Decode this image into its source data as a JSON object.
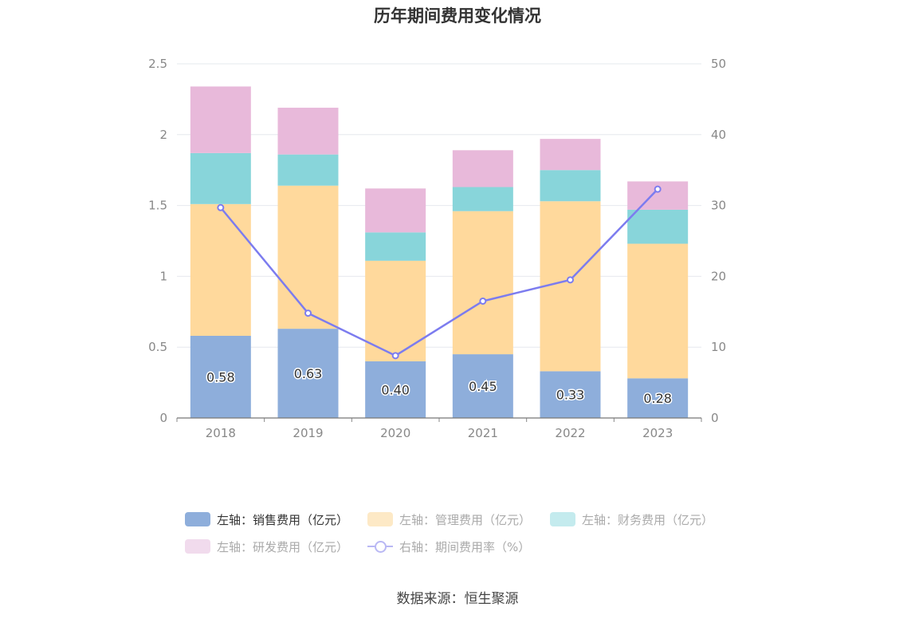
{
  "title": "历年期间费用变化情况",
  "source": "数据来源：恒生聚源",
  "legend": [
    {
      "label": "左轴：销售费用（亿元）",
      "color": "#8eaedb",
      "style": "bar",
      "dim": false
    },
    {
      "label": "左轴：管理费用（亿元）",
      "color": "#fde9c6",
      "style": "bar",
      "dim": true
    },
    {
      "label": "左轴：财务费用（亿元）",
      "color": "#c4ebee",
      "style": "bar",
      "dim": true
    },
    {
      "label": "左轴：研发费用（亿元）",
      "color": "#f1dbed",
      "style": "bar",
      "dim": true
    },
    {
      "label": "右轴：期间费用率（%）",
      "color": "#b9b8f4",
      "style": "line",
      "dim": true
    }
  ],
  "chart_data": {
    "type": "bar",
    "stacked": true,
    "categories": [
      "2018",
      "2019",
      "2020",
      "2021",
      "2022",
      "2023"
    ],
    "series": [
      {
        "name": "左轴：销售费用（亿元）",
        "axis": "left",
        "color": "#8eaedb",
        "values": [
          0.58,
          0.63,
          0.4,
          0.45,
          0.33,
          0.28
        ],
        "labels": [
          "0.58",
          "0.63",
          "0.40",
          "0.45",
          "0.33",
          "0.28"
        ]
      },
      {
        "name": "左轴：管理费用（亿元）",
        "axis": "left",
        "color": "#ffd99c",
        "values": [
          0.93,
          1.01,
          0.71,
          1.01,
          1.2,
          0.95
        ]
      },
      {
        "name": "左轴：财务费用（亿元）",
        "axis": "left",
        "color": "#88d5da",
        "values": [
          0.36,
          0.22,
          0.2,
          0.17,
          0.22,
          0.24
        ]
      },
      {
        "name": "左轴：研发费用（亿元）",
        "axis": "left",
        "color": "#e8b9da",
        "values": [
          0.47,
          0.33,
          0.31,
          0.26,
          0.22,
          0.2
        ]
      },
      {
        "name": "右轴：期间费用率（%）",
        "axis": "right",
        "type": "line",
        "color": "#7c7cef",
        "values": [
          29.7,
          14.8,
          8.8,
          16.5,
          19.5,
          32.3
        ]
      }
    ],
    "y_left": {
      "min": 0,
      "max": 2.5,
      "ticks": [
        "0",
        "0.5",
        "1",
        "1.5",
        "2",
        "2.5"
      ]
    },
    "y_right": {
      "min": 0,
      "max": 50,
      "ticks": [
        "0",
        "10",
        "20",
        "30",
        "40",
        "50"
      ]
    },
    "grid": true
  }
}
